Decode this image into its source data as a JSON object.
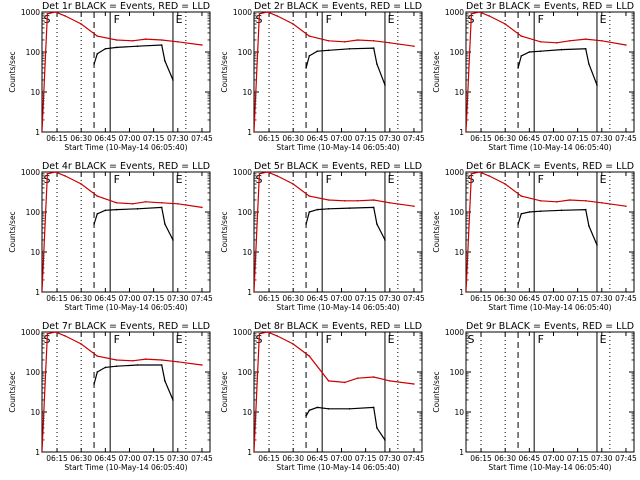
{
  "chart_data": [
    {
      "type": "line",
      "title": "Det 1r BLACK = Events, RED = LLD",
      "xlabel": "Start Time (10-May-14 06:05:40)",
      "ylabel": "Counts/sec",
      "x_ticks": [
        "06:15",
        "06:30",
        "06:45",
        "07:00",
        "07:15",
        "07:30",
        "07:45"
      ],
      "y_ticks": [
        "1",
        "10",
        "100",
        "1000"
      ],
      "ylog": true,
      "ylim": [
        1,
        1000
      ],
      "xlim": [
        "06:05:40",
        "07:50:00"
      ],
      "markers": [
        "S",
        "F",
        "E"
      ],
      "has_data": true,
      "series": [
        {
          "color": "#cc0000",
          "x": [
            "06:05:40",
            "06:09:00",
            "06:14:00",
            "06:20:00",
            "06:30:00",
            "06:40:00",
            "06:52:00",
            "07:02:00",
            "07:10:00",
            "07:20:00",
            "07:30:00",
            "07:45:00"
          ],
          "y": [
            1,
            900,
            1000,
            800,
            500,
            250,
            200,
            190,
            210,
            200,
            180,
            150
          ]
        },
        {
          "color": "#000000",
          "x": [
            "06:38:00",
            "06:40:00",
            "06:45:00",
            "06:52:00",
            "07:05:00",
            "07:20:00",
            "07:22:00",
            "07:27:00"
          ],
          "y": [
            50,
            90,
            120,
            130,
            140,
            150,
            60,
            20
          ]
        }
      ]
    },
    {
      "type": "line",
      "title": "Det 2r BLACK = Events, RED = LLD",
      "xlabel": "Start Time (10-May-14 06:05:40)",
      "ylabel": "Counts/sec",
      "x_ticks": [
        "06:15",
        "06:30",
        "06:45",
        "07:00",
        "07:15",
        "07:30",
        "07:45"
      ],
      "y_ticks": [
        "1",
        "10",
        "100",
        "1000"
      ],
      "ylog": true,
      "ylim": [
        1,
        1000
      ],
      "xlim": [
        "06:05:40",
        "07:50:00"
      ],
      "markers": [
        "S",
        "F",
        "E"
      ],
      "has_data": true,
      "series": [
        {
          "color": "#cc0000",
          "x": [
            "06:05:40",
            "06:09:00",
            "06:14:00",
            "06:20:00",
            "06:30:00",
            "06:40:00",
            "06:52:00",
            "07:02:00",
            "07:10:00",
            "07:20:00",
            "07:30:00",
            "07:45:00"
          ],
          "y": [
            1,
            900,
            1000,
            800,
            500,
            250,
            190,
            180,
            200,
            190,
            170,
            140
          ]
        },
        {
          "color": "#000000",
          "x": [
            "06:38:00",
            "06:40:00",
            "06:45:00",
            "06:52:00",
            "07:05:00",
            "07:20:00",
            "07:22:00",
            "07:27:00"
          ],
          "y": [
            40,
            80,
            105,
            110,
            120,
            125,
            50,
            15
          ]
        }
      ]
    },
    {
      "type": "line",
      "title": "Det 3r BLACK = Events, RED = LLD",
      "xlabel": "Start Time (10-May-14 06:05:40)",
      "ylabel": "Counts/sec",
      "x_ticks": [
        "06:15",
        "06:30",
        "06:45",
        "07:00",
        "07:15",
        "07:30",
        "07:45"
      ],
      "y_ticks": [
        "1",
        "10",
        "100",
        "1000"
      ],
      "ylog": true,
      "ylim": [
        1,
        1000
      ],
      "xlim": [
        "06:05:40",
        "07:50:00"
      ],
      "markers": [
        "S",
        "F",
        "E"
      ],
      "has_data": true,
      "series": [
        {
          "color": "#cc0000",
          "x": [
            "06:05:40",
            "06:09:00",
            "06:14:00",
            "06:20:00",
            "06:30:00",
            "06:40:00",
            "06:52:00",
            "07:02:00",
            "07:10:00",
            "07:20:00",
            "07:30:00",
            "07:45:00"
          ],
          "y": [
            1,
            900,
            1000,
            800,
            500,
            250,
            180,
            170,
            190,
            210,
            190,
            150
          ]
        },
        {
          "color": "#000000",
          "x": [
            "06:38:00",
            "06:40:00",
            "06:45:00",
            "06:52:00",
            "07:05:00",
            "07:20:00",
            "07:22:00",
            "07:27:00"
          ],
          "y": [
            40,
            80,
            100,
            105,
            115,
            120,
            50,
            15
          ]
        }
      ]
    },
    {
      "type": "line",
      "title": "Det 4r BLACK = Events, RED = LLD",
      "xlabel": "Start Time (10-May-14 06:05:40)",
      "ylabel": "Counts/sec",
      "x_ticks": [
        "06:15",
        "06:30",
        "06:45",
        "07:00",
        "07:15",
        "07:30",
        "07:45"
      ],
      "y_ticks": [
        "1",
        "10",
        "100",
        "1000"
      ],
      "ylog": true,
      "ylim": [
        1,
        1000
      ],
      "xlim": [
        "06:05:40",
        "07:50:00"
      ],
      "markers": [
        "S",
        "F",
        "E"
      ],
      "has_data": true,
      "series": [
        {
          "color": "#cc0000",
          "x": [
            "06:05:40",
            "06:09:00",
            "06:14:00",
            "06:20:00",
            "06:30:00",
            "06:40:00",
            "06:52:00",
            "07:02:00",
            "07:10:00",
            "07:20:00",
            "07:30:00",
            "07:45:00"
          ],
          "y": [
            1,
            900,
            1000,
            800,
            500,
            250,
            170,
            160,
            180,
            170,
            160,
            130
          ]
        },
        {
          "color": "#000000",
          "x": [
            "06:38:00",
            "06:40:00",
            "06:45:00",
            "06:52:00",
            "07:05:00",
            "07:20:00",
            "07:22:00",
            "07:27:00"
          ],
          "y": [
            50,
            90,
            110,
            115,
            120,
            130,
            50,
            20
          ]
        }
      ]
    },
    {
      "type": "line",
      "title": "Det 5r BLACK = Events, RED = LLD",
      "xlabel": "Start Time (10-May-14 06:05:40)",
      "ylabel": "Counts/sec",
      "x_ticks": [
        "06:15",
        "06:30",
        "06:45",
        "07:00",
        "07:15",
        "07:30",
        "07:45"
      ],
      "y_ticks": [
        "1",
        "10",
        "100",
        "1000"
      ],
      "ylog": true,
      "ylim": [
        1,
        1000
      ],
      "xlim": [
        "06:05:40",
        "07:50:00"
      ],
      "markers": [
        "S",
        "F",
        "E"
      ],
      "has_data": true,
      "series": [
        {
          "color": "#cc0000",
          "x": [
            "06:05:40",
            "06:09:00",
            "06:14:00",
            "06:20:00",
            "06:30:00",
            "06:40:00",
            "06:52:00",
            "07:02:00",
            "07:10:00",
            "07:20:00",
            "07:30:00",
            "07:45:00"
          ],
          "y": [
            1,
            900,
            1000,
            800,
            500,
            250,
            200,
            190,
            190,
            200,
            170,
            140
          ]
        },
        {
          "color": "#000000",
          "x": [
            "06:38:00",
            "06:40:00",
            "06:45:00",
            "06:52:00",
            "07:05:00",
            "07:20:00",
            "07:22:00",
            "07:27:00"
          ],
          "y": [
            50,
            100,
            115,
            120,
            125,
            130,
            50,
            20
          ]
        }
      ]
    },
    {
      "type": "line",
      "title": "Det 6r BLACK = Events, RED = LLD",
      "xlabel": "Start Time (10-May-14 06:05:40)",
      "ylabel": "Counts/sec",
      "x_ticks": [
        "06:15",
        "06:30",
        "06:45",
        "07:00",
        "07:15",
        "07:30",
        "07:45"
      ],
      "y_ticks": [
        "1",
        "10",
        "100",
        "1000"
      ],
      "ylog": true,
      "ylim": [
        1,
        1000
      ],
      "xlim": [
        "06:05:40",
        "07:50:00"
      ],
      "markers": [
        "S",
        "F",
        "E"
      ],
      "has_data": true,
      "series": [
        {
          "color": "#cc0000",
          "x": [
            "06:05:40",
            "06:09:00",
            "06:14:00",
            "06:20:00",
            "06:30:00",
            "06:40:00",
            "06:52:00",
            "07:02:00",
            "07:10:00",
            "07:20:00",
            "07:30:00",
            "07:45:00"
          ],
          "y": [
            1,
            900,
            1000,
            800,
            500,
            250,
            190,
            180,
            200,
            190,
            170,
            140
          ]
        },
        {
          "color": "#000000",
          "x": [
            "06:38:00",
            "06:40:00",
            "06:45:00",
            "06:52:00",
            "07:05:00",
            "07:20:00",
            "07:22:00",
            "07:27:00"
          ],
          "y": [
            50,
            90,
            100,
            105,
            110,
            115,
            45,
            15
          ]
        }
      ]
    },
    {
      "type": "line",
      "title": "Det 7r BLACK = Events, RED = LLD",
      "xlabel": "Start Time (10-May-14 06:05:40)",
      "ylabel": "Counts/sec",
      "x_ticks": [
        "06:15",
        "06:30",
        "06:45",
        "07:00",
        "07:15",
        "07:30",
        "07:45"
      ],
      "y_ticks": [
        "1",
        "10",
        "100",
        "1000"
      ],
      "ylog": true,
      "ylim": [
        1,
        1000
      ],
      "xlim": [
        "06:05:40",
        "07:50:00"
      ],
      "markers": [
        "S",
        "F",
        "E"
      ],
      "has_data": true,
      "series": [
        {
          "color": "#cc0000",
          "x": [
            "06:05:40",
            "06:09:00",
            "06:14:00",
            "06:20:00",
            "06:30:00",
            "06:40:00",
            "06:52:00",
            "07:02:00",
            "07:10:00",
            "07:20:00",
            "07:30:00",
            "07:45:00"
          ],
          "y": [
            1,
            900,
            1000,
            800,
            500,
            250,
            200,
            190,
            210,
            200,
            180,
            150
          ]
        },
        {
          "color": "#000000",
          "x": [
            "06:38:00",
            "06:40:00",
            "06:45:00",
            "06:52:00",
            "07:05:00",
            "07:20:00",
            "07:22:00",
            "07:27:00"
          ],
          "y": [
            50,
            100,
            130,
            140,
            150,
            150,
            60,
            20
          ]
        }
      ]
    },
    {
      "type": "line",
      "title": "Det 8r BLACK = Events, RED = LLD",
      "xlabel": "Start Time (10-May-14 06:05:40)",
      "ylabel": "Counts/sec",
      "x_ticks": [
        "06:15",
        "06:30",
        "06:45",
        "07:00",
        "07:15",
        "07:30",
        "07:45"
      ],
      "y_ticks": [
        "1",
        "10",
        "100",
        "1000"
      ],
      "ylog": true,
      "ylim": [
        1,
        1000
      ],
      "xlim": [
        "06:05:40",
        "07:50:00"
      ],
      "markers": [
        "S",
        "F",
        "E"
      ],
      "has_data": true,
      "series": [
        {
          "color": "#cc0000",
          "x": [
            "06:05:40",
            "06:09:00",
            "06:14:00",
            "06:20:00",
            "06:30:00",
            "06:40:00",
            "06:52:00",
            "07:02:00",
            "07:10:00",
            "07:20:00",
            "07:30:00",
            "07:45:00"
          ],
          "y": [
            1,
            900,
            1000,
            800,
            500,
            250,
            60,
            55,
            70,
            75,
            60,
            50
          ]
        },
        {
          "color": "#000000",
          "x": [
            "06:38:00",
            "06:40:00",
            "06:45:00",
            "06:52:00",
            "07:05:00",
            "07:20:00",
            "07:22:00",
            "07:27:00"
          ],
          "y": [
            8,
            11,
            13,
            12,
            12,
            13,
            4,
            2
          ]
        }
      ]
    },
    {
      "type": "line",
      "title": "Det 9r BLACK = Events, RED = LLD",
      "xlabel": "Start Time (10-May-14 06:05:40)",
      "ylabel": "Counts/sec",
      "x_ticks": [
        "06:15",
        "06:30",
        "06:45",
        "07:00",
        "07:15",
        "07:30",
        "07:45"
      ],
      "y_ticks": [
        "1",
        "10",
        "100",
        "1000"
      ],
      "ylog": true,
      "ylim": [
        1,
        1000
      ],
      "xlim": [
        "06:05:40",
        "07:50:00"
      ],
      "markers": [
        "S",
        "F",
        "E"
      ],
      "has_data": false,
      "series": []
    }
  ]
}
